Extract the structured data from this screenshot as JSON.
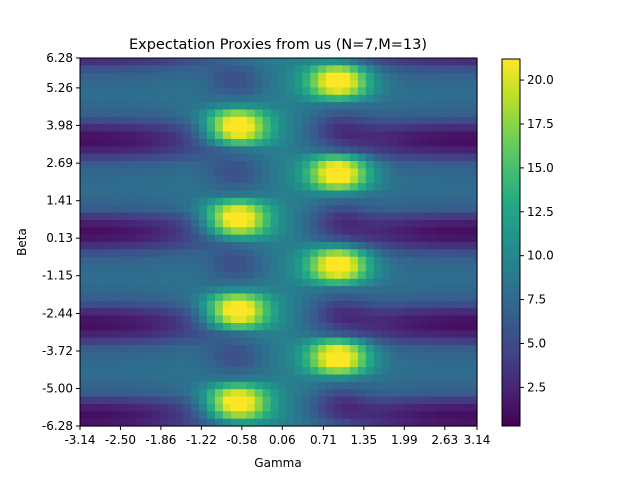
{
  "chart_data": {
    "type": "heatmap",
    "title": "Expectation Proxies from us (N=7,M=13)",
    "xlabel": "Gamma",
    "ylabel": "Beta",
    "x_ticks": [
      "-3.14",
      "-2.50",
      "-1.86",
      "-1.22",
      "-0.58",
      "0.06",
      "0.71",
      "1.35",
      "1.99",
      "2.63",
      "3.14"
    ],
    "y_ticks": [
      "6.28",
      "5.26",
      "3.98",
      "2.69",
      "1.41",
      "0.13",
      "-1.15",
      "-2.44",
      "-3.72",
      "-5.00",
      "-6.28"
    ],
    "xlim": [
      -3.14,
      3.14
    ],
    "ylim": [
      -6.28,
      6.28
    ],
    "grid_cols": 50,
    "grid_rows": 50,
    "colormap": "viridis",
    "colorbar": {
      "ticks": [
        "2.5",
        "5.0",
        "7.5",
        "10.0",
        "12.5",
        "15.0",
        "17.5",
        "20.0"
      ],
      "tick_values": [
        2.5,
        5.0,
        7.5,
        10.0,
        12.5,
        15.0,
        17.5,
        20.0
      ],
      "vmin": 0.3,
      "vmax": 21.2
    }
  }
}
